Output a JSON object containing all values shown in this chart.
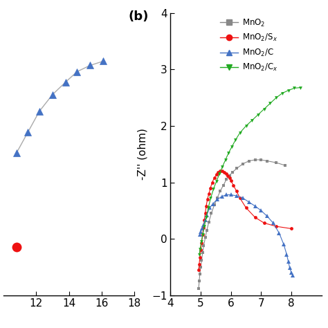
{
  "title_b": "(b)",
  "ylabel_b": "-Z'' (ohm)",
  "xlim_b": [
    4,
    9
  ],
  "ylim_b": [
    -1,
    4
  ],
  "xticks_b": [
    4,
    5,
    6,
    7,
    8
  ],
  "yticks_b": [
    -1,
    0,
    1,
    2,
    3,
    4
  ],
  "xlim_a": [
    10,
    18
  ],
  "ylim_a": [
    2.5,
    3.85
  ],
  "xticks_a": [
    12,
    14,
    16,
    18
  ],
  "colors": {
    "MnO2": "#888888",
    "MnO2_S": "#ee1111",
    "MnO2_C1": "#4472c4",
    "MnO2_C2": "#22aa22"
  },
  "left_blue_x": [
    10.8,
    11.5,
    12.2,
    13.0,
    13.8,
    14.5,
    15.3,
    16.1
  ],
  "left_blue_y": [
    3.18,
    3.28,
    3.38,
    3.46,
    3.52,
    3.57,
    3.6,
    3.62
  ],
  "left_red_x": [
    10.8
  ],
  "left_red_y": [
    2.73
  ],
  "MnO2_x": [
    4.93,
    4.95,
    4.97,
    5.0,
    5.03,
    5.06,
    5.1,
    5.15,
    5.2,
    5.27,
    5.35,
    5.45,
    5.55,
    5.65,
    5.75,
    5.85,
    5.95,
    6.05,
    6.2,
    6.4,
    6.6,
    6.8,
    7.0,
    7.2,
    7.5,
    7.8
  ],
  "MnO2_y": [
    -0.88,
    -0.75,
    -0.62,
    -0.5,
    -0.38,
    -0.25,
    -0.12,
    0.02,
    0.15,
    0.3,
    0.45,
    0.6,
    0.73,
    0.85,
    0.95,
    1.05,
    1.12,
    1.18,
    1.25,
    1.33,
    1.38,
    1.4,
    1.4,
    1.38,
    1.35,
    1.3
  ],
  "MnO2S_x": [
    4.93,
    4.95,
    4.97,
    5.0,
    5.03,
    5.06,
    5.09,
    5.12,
    5.15,
    5.18,
    5.22,
    5.27,
    5.32,
    5.38,
    5.45,
    5.52,
    5.58,
    5.65,
    5.72,
    5.78,
    5.85,
    5.9,
    5.95,
    6.0,
    6.08,
    6.18,
    6.3,
    6.5,
    6.8,
    7.1,
    7.5,
    8.0
  ],
  "MnO2S_y": [
    -0.55,
    -0.45,
    -0.33,
    -0.2,
    -0.07,
    0.07,
    0.2,
    0.33,
    0.46,
    0.58,
    0.7,
    0.8,
    0.9,
    1.0,
    1.08,
    1.14,
    1.18,
    1.2,
    1.2,
    1.18,
    1.15,
    1.12,
    1.08,
    1.03,
    0.95,
    0.85,
    0.72,
    0.55,
    0.38,
    0.28,
    0.22,
    0.18
  ],
  "MnO2C1_x": [
    4.97,
    5.0,
    5.05,
    5.1,
    5.15,
    5.2,
    5.3,
    5.4,
    5.55,
    5.7,
    5.85,
    6.0,
    6.2,
    6.4,
    6.6,
    6.8,
    7.0,
    7.2,
    7.4,
    7.6,
    7.75,
    7.85,
    7.9,
    7.95,
    8.0,
    8.05
  ],
  "MnO2C1_y": [
    0.08,
    0.12,
    0.18,
    0.25,
    0.33,
    0.42,
    0.55,
    0.62,
    0.7,
    0.75,
    0.78,
    0.78,
    0.76,
    0.72,
    0.65,
    0.58,
    0.5,
    0.4,
    0.28,
    0.1,
    -0.1,
    -0.28,
    -0.4,
    -0.52,
    -0.6,
    -0.65
  ],
  "MnO2C2_x": [
    4.95,
    4.98,
    5.02,
    5.07,
    5.12,
    5.18,
    5.25,
    5.33,
    5.42,
    5.52,
    5.62,
    5.72,
    5.82,
    5.92,
    6.03,
    6.15,
    6.3,
    6.5,
    6.7,
    6.9,
    7.1,
    7.3,
    7.5,
    7.7,
    7.9,
    8.1,
    8.3
  ],
  "MnO2C2_y": [
    -0.28,
    -0.18,
    -0.05,
    0.08,
    0.22,
    0.38,
    0.55,
    0.72,
    0.88,
    1.02,
    1.15,
    1.28,
    1.4,
    1.52,
    1.63,
    1.75,
    1.88,
    2.0,
    2.1,
    2.2,
    2.3,
    2.4,
    2.5,
    2.58,
    2.63,
    2.67,
    2.68
  ]
}
